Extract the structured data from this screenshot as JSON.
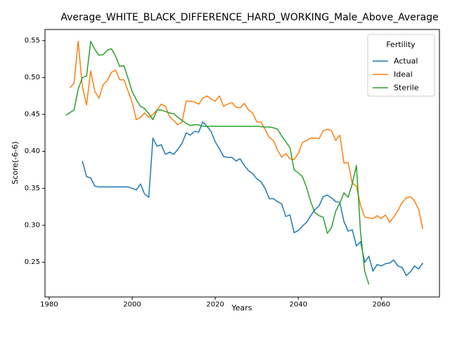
{
  "chart_data": {
    "type": "line",
    "title": "Average_WHITE_BLACK_DIFFERENCE_HARD_WORKING_Male_Above_Average",
    "xlabel": "Years",
    "ylabel": "Score(-6-6)",
    "xlim": [
      1979,
      2074
    ],
    "ylim": [
      0.203,
      0.565
    ],
    "xticks": [
      1980,
      2000,
      2020,
      2040,
      2060
    ],
    "yticks": [
      0.25,
      0.3,
      0.35,
      0.4,
      0.45,
      0.5,
      0.55
    ],
    "grid": false,
    "legend": {
      "title": "Fertility",
      "position": "top-right"
    },
    "series": [
      {
        "name": "Actual",
        "color": "#1f77b4",
        "points": [
          [
            1988,
            0.387
          ],
          [
            1989,
            0.366
          ],
          [
            1990,
            0.364
          ],
          [
            1991,
            0.353
          ],
          [
            1992,
            0.352
          ],
          [
            1993,
            0.352
          ],
          [
            1995,
            0.352
          ],
          [
            1997,
            0.352
          ],
          [
            1999,
            0.352
          ],
          [
            2001,
            0.348
          ],
          [
            2002,
            0.356
          ],
          [
            2003,
            0.342
          ],
          [
            2004,
            0.338
          ],
          [
            2005,
            0.418
          ],
          [
            2006,
            0.407
          ],
          [
            2007,
            0.409
          ],
          [
            2008,
            0.396
          ],
          [
            2009,
            0.399
          ],
          [
            2010,
            0.396
          ],
          [
            2011,
            0.403
          ],
          [
            2012,
            0.411
          ],
          [
            2013,
            0.425
          ],
          [
            2014,
            0.422
          ],
          [
            2015,
            0.427
          ],
          [
            2016,
            0.426
          ],
          [
            2017,
            0.44
          ],
          [
            2018,
            0.434
          ],
          [
            2019,
            0.427
          ],
          [
            2020,
            0.413
          ],
          [
            2021,
            0.404
          ],
          [
            2022,
            0.393
          ],
          [
            2023,
            0.392
          ],
          [
            2024,
            0.392
          ],
          [
            2025,
            0.387
          ],
          [
            2026,
            0.39
          ],
          [
            2027,
            0.381
          ],
          [
            2028,
            0.374
          ],
          [
            2029,
            0.37
          ],
          [
            2030,
            0.363
          ],
          [
            2031,
            0.359
          ],
          [
            2032,
            0.35
          ],
          [
            2033,
            0.336
          ],
          [
            2034,
            0.336
          ],
          [
            2035,
            0.332
          ],
          [
            2036,
            0.329
          ],
          [
            2037,
            0.312
          ],
          [
            2038,
            0.314
          ],
          [
            2039,
            0.29
          ],
          [
            2040,
            0.293
          ],
          [
            2041,
            0.299
          ],
          [
            2042,
            0.304
          ],
          [
            2043,
            0.313
          ],
          [
            2044,
            0.321
          ],
          [
            2045,
            0.326
          ],
          [
            2046,
            0.339
          ],
          [
            2047,
            0.341
          ],
          [
            2048,
            0.337
          ],
          [
            2049,
            0.332
          ],
          [
            2050,
            0.331
          ],
          [
            2051,
            0.305
          ],
          [
            2052,
            0.292
          ],
          [
            2053,
            0.294
          ],
          [
            2054,
            0.272
          ],
          [
            2055,
            0.278
          ],
          [
            2056,
            0.25
          ],
          [
            2057,
            0.258
          ],
          [
            2058,
            0.238
          ],
          [
            2059,
            0.247
          ],
          [
            2060,
            0.245
          ],
          [
            2061,
            0.248
          ],
          [
            2062,
            0.249
          ],
          [
            2063,
            0.253
          ],
          [
            2064,
            0.245
          ],
          [
            2065,
            0.243
          ],
          [
            2066,
            0.232
          ],
          [
            2067,
            0.237
          ],
          [
            2068,
            0.245
          ],
          [
            2069,
            0.241
          ],
          [
            2070,
            0.249
          ]
        ]
      },
      {
        "name": "Ideal",
        "color": "#ff7f0e",
        "points": [
          [
            1985,
            0.486
          ],
          [
            1986,
            0.492
          ],
          [
            1987,
            0.549
          ],
          [
            1988,
            0.488
          ],
          [
            1989,
            0.463
          ],
          [
            1990,
            0.509
          ],
          [
            1991,
            0.481
          ],
          [
            1992,
            0.472
          ],
          [
            1993,
            0.49
          ],
          [
            1994,
            0.496
          ],
          [
            1995,
            0.507
          ],
          [
            1996,
            0.51
          ],
          [
            1997,
            0.497
          ],
          [
            1998,
            0.497
          ],
          [
            1999,
            0.482
          ],
          [
            2000,
            0.466
          ],
          [
            2001,
            0.443
          ],
          [
            2002,
            0.446
          ],
          [
            2003,
            0.452
          ],
          [
            2004,
            0.446
          ],
          [
            2005,
            0.45
          ],
          [
            2006,
            0.456
          ],
          [
            2007,
            0.464
          ],
          [
            2008,
            0.461
          ],
          [
            2009,
            0.447
          ],
          [
            2010,
            0.442
          ],
          [
            2011,
            0.436
          ],
          [
            2012,
            0.44
          ],
          [
            2013,
            0.468
          ],
          [
            2014,
            0.468
          ],
          [
            2015,
            0.467
          ],
          [
            2016,
            0.464
          ],
          [
            2017,
            0.472
          ],
          [
            2018,
            0.475
          ],
          [
            2019,
            0.471
          ],
          [
            2020,
            0.468
          ],
          [
            2021,
            0.475
          ],
          [
            2022,
            0.461
          ],
          [
            2023,
            0.464
          ],
          [
            2024,
            0.466
          ],
          [
            2025,
            0.46
          ],
          [
            2026,
            0.459
          ],
          [
            2027,
            0.465
          ],
          [
            2028,
            0.456
          ],
          [
            2029,
            0.452
          ],
          [
            2030,
            0.44
          ],
          [
            2031,
            0.44
          ],
          [
            2032,
            0.43
          ],
          [
            2033,
            0.419
          ],
          [
            2034,
            0.415
          ],
          [
            2035,
            0.402
          ],
          [
            2036,
            0.392
          ],
          [
            2037,
            0.397
          ],
          [
            2038,
            0.39
          ],
          [
            2039,
            0.389
          ],
          [
            2040,
            0.397
          ],
          [
            2041,
            0.412
          ],
          [
            2042,
            0.415
          ],
          [
            2043,
            0.418
          ],
          [
            2044,
            0.418
          ],
          [
            2045,
            0.417
          ],
          [
            2046,
            0.428
          ],
          [
            2047,
            0.43
          ],
          [
            2048,
            0.428
          ],
          [
            2049,
            0.415
          ],
          [
            2050,
            0.422
          ],
          [
            2051,
            0.384
          ],
          [
            2052,
            0.385
          ],
          [
            2053,
            0.357
          ],
          [
            2054,
            0.353
          ],
          [
            2055,
            0.327
          ],
          [
            2056,
            0.311
          ],
          [
            2057,
            0.31
          ],
          [
            2058,
            0.309
          ],
          [
            2059,
            0.313
          ],
          [
            2060,
            0.309
          ],
          [
            2061,
            0.314
          ],
          [
            2062,
            0.304
          ],
          [
            2063,
            0.311
          ],
          [
            2064,
            0.32
          ],
          [
            2065,
            0.331
          ],
          [
            2066,
            0.337
          ],
          [
            2067,
            0.339
          ],
          [
            2068,
            0.333
          ],
          [
            2069,
            0.321
          ],
          [
            2070,
            0.295
          ]
        ]
      },
      {
        "name": "Sterile",
        "color": "#2ca02c",
        "points": [
          [
            1984,
            0.449
          ],
          [
            1986,
            0.456
          ],
          [
            1987,
            0.484
          ],
          [
            1988,
            0.5
          ],
          [
            1989,
            0.502
          ],
          [
            1990,
            0.549
          ],
          [
            1991,
            0.538
          ],
          [
            1992,
            0.53
          ],
          [
            1993,
            0.531
          ],
          [
            1994,
            0.537
          ],
          [
            1995,
            0.539
          ],
          [
            1996,
            0.529
          ],
          [
            1997,
            0.515
          ],
          [
            1998,
            0.516
          ],
          [
            1999,
            0.499
          ],
          [
            2000,
            0.481
          ],
          [
            2001,
            0.47
          ],
          [
            2002,
            0.461
          ],
          [
            2003,
            0.458
          ],
          [
            2004,
            0.451
          ],
          [
            2005,
            0.443
          ],
          [
            2006,
            0.456
          ],
          [
            2007,
            0.456
          ],
          [
            2008,
            0.454
          ],
          [
            2009,
            0.452
          ],
          [
            2010,
            0.451
          ],
          [
            2011,
            0.446
          ],
          [
            2012,
            0.442
          ],
          [
            2013,
            0.438
          ],
          [
            2014,
            0.435
          ],
          [
            2015,
            0.436
          ],
          [
            2016,
            0.436
          ],
          [
            2017,
            0.434
          ],
          [
            2018,
            0.434
          ],
          [
            2020,
            0.434
          ],
          [
            2025,
            0.434
          ],
          [
            2030,
            0.434
          ],
          [
            2032,
            0.433
          ],
          [
            2033,
            0.433
          ],
          [
            2034,
            0.432
          ],
          [
            2035,
            0.43
          ],
          [
            2036,
            0.421
          ],
          [
            2037,
            0.413
          ],
          [
            2038,
            0.405
          ],
          [
            2039,
            0.375
          ],
          [
            2040,
            0.371
          ],
          [
            2041,
            0.366
          ],
          [
            2042,
            0.351
          ],
          [
            2043,
            0.332
          ],
          [
            2044,
            0.317
          ],
          [
            2045,
            0.313
          ],
          [
            2046,
            0.311
          ],
          [
            2047,
            0.289
          ],
          [
            2048,
            0.297
          ],
          [
            2049,
            0.319
          ],
          [
            2050,
            0.33
          ],
          [
            2051,
            0.344
          ],
          [
            2052,
            0.338
          ],
          [
            2053,
            0.356
          ],
          [
            2054,
            0.381
          ],
          [
            2055,
            0.29
          ],
          [
            2056,
            0.238
          ],
          [
            2057,
            0.22
          ]
        ]
      }
    ]
  }
}
